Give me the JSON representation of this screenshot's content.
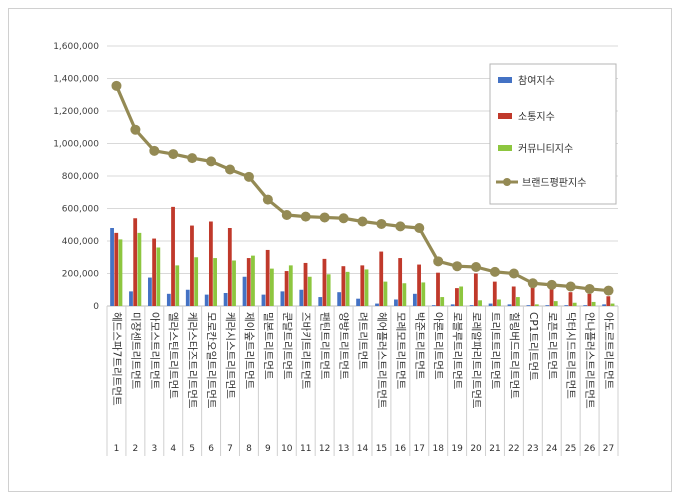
{
  "chart_data": {
    "type": "bar",
    "y_axis": {
      "min": 0,
      "max": 1600000,
      "step": 200000,
      "tick_labels": [
        "0",
        "200,000",
        "400,000",
        "600,000",
        "800,000",
        "1,000,000",
        "1,200,000",
        "1,400,000",
        "1,600,000"
      ]
    },
    "grid": true,
    "legend_position": "top-right",
    "categories": [
      "헤드스파7트리트먼트",
      "미쟝센트리트먼트",
      "아모스트리트먼트",
      "엘라스틴트리트먼트",
      "케라스타즈트리트먼트",
      "모로칸오일트리트먼트",
      "케라시스트리트먼트",
      "제이숲트리트먼트",
      "밀본트리트먼트",
      "쿤달트리트먼트",
      "즈바키트리트먼트",
      "팬틴트리트먼트",
      "양방트리트먼트",
      "려트리트먼트",
      "헤어플러스트리트먼트",
      "모레모트리트먼트",
      "박준트리트먼트",
      "아론트리트먼트",
      "로블루트리트먼트",
      "로레알파리트리트먼트",
      "트리트트리트먼트",
      "힐링버드트리트먼트",
      "CP1트리트먼트",
      "로픈트리트먼트",
      "닥터시드트리트먼트",
      "안나플러스트리트먼트",
      "아도르트리트먼트"
    ],
    "category_index": [
      "1",
      "2",
      "3",
      "4",
      "5",
      "6",
      "7",
      "8",
      "9",
      "10",
      "11",
      "12",
      "13",
      "14",
      "15",
      "16",
      "17",
      "18",
      "19",
      "20",
      "21",
      "22",
      "23",
      "24",
      "25",
      "26",
      "27"
    ],
    "series": [
      {
        "name": "참여지수",
        "type": "bar",
        "color": "#4472c4",
        "values": [
          480000,
          90000,
          175000,
          75000,
          100000,
          70000,
          80000,
          180000,
          70000,
          90000,
          100000,
          55000,
          85000,
          45000,
          15000,
          40000,
          75000,
          5000,
          10000,
          5000,
          15000,
          10000,
          5000,
          5000,
          5000,
          5000,
          10000
        ]
      },
      {
        "name": "소통지수",
        "type": "bar",
        "color": "#c0392b",
        "values": [
          450000,
          540000,
          415000,
          610000,
          495000,
          520000,
          480000,
          295000,
          345000,
          215000,
          265000,
          290000,
          245000,
          250000,
          335000,
          295000,
          255000,
          205000,
          110000,
          200000,
          150000,
          120000,
          120000,
          120000,
          85000,
          75000,
          60000
        ]
      },
      {
        "name": "커뮤니티지수",
        "type": "bar",
        "color": "#8dc63f",
        "values": [
          410000,
          450000,
          360000,
          250000,
          300000,
          295000,
          280000,
          310000,
          230000,
          250000,
          180000,
          195000,
          210000,
          225000,
          150000,
          140000,
          145000,
          55000,
          120000,
          35000,
          40000,
          55000,
          10000,
          30000,
          20000,
          25000,
          15000
        ]
      },
      {
        "name": "브랜드평판지수",
        "type": "line",
        "color": "#948a54",
        "values": [
          1355000,
          1085000,
          955000,
          935000,
          910000,
          890000,
          840000,
          795000,
          655000,
          560000,
          550000,
          545000,
          540000,
          520000,
          505000,
          490000,
          480000,
          275000,
          245000,
          240000,
          210000,
          200000,
          140000,
          130000,
          120000,
          105000,
          95000
        ]
      }
    ]
  }
}
